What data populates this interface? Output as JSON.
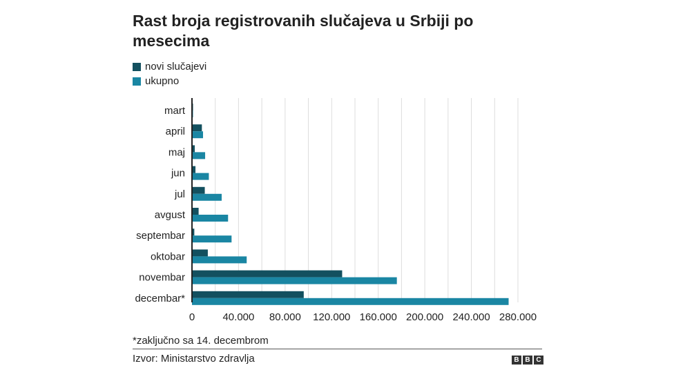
{
  "chart_data": {
    "type": "bar",
    "orientation": "horizontal",
    "title": "Rast broja registrovanih slučajeva u Srbiji po mesecima",
    "categories": [
      "mart",
      "april",
      "maj",
      "jun",
      "jul",
      "avgust",
      "septembar",
      "oktobar",
      "novembar",
      "decembar*"
    ],
    "series": [
      {
        "name": "novi slučajevi",
        "color": "#13505f",
        "values": [
          900,
          8500,
          2400,
          3000,
          11000,
          5700,
          2000,
          13600,
          129000,
          96000
        ]
      },
      {
        "name": "ukupno",
        "color": "#1a86a3",
        "values": [
          900,
          9500,
          11300,
          14500,
          25500,
          31000,
          34000,
          47000,
          176000,
          272000
        ]
      }
    ],
    "xlim": [
      0,
      280000
    ],
    "xticks": [
      "0",
      "40.000",
      "80.000",
      "120.000",
      "160.000",
      "200.000",
      "240.000",
      "280.000"
    ],
    "legend": "top-left",
    "grid": true,
    "footnote": "*zaključno sa 14. decembrom",
    "source": "Izvor: Ministarstvo zdravlja",
    "logo": "BBC"
  }
}
